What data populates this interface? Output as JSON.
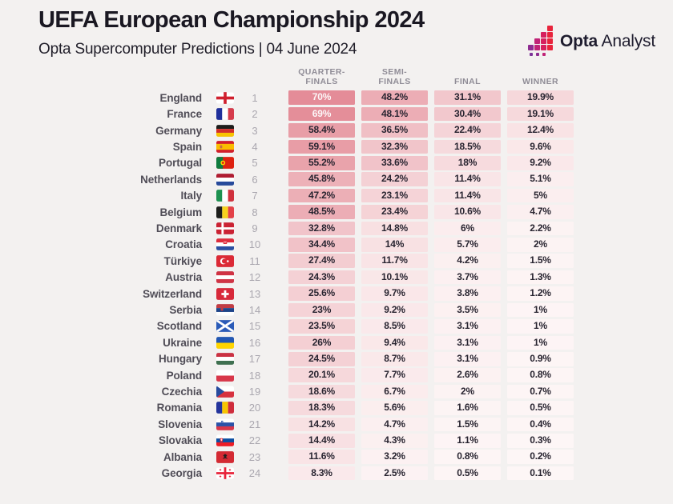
{
  "page": {
    "background": "#f3f1f0"
  },
  "header": {
    "title": "UEFA European Championship 2024",
    "subtitle": "Opta Supercomputer Predictions | 04 June 2024",
    "logo": {
      "bold": "Opta",
      "regular": "Analyst",
      "icon_colors": [
        "#e8243c",
        "#d6215e",
        "#c02377",
        "#8e2b91",
        "#7c3198"
      ]
    }
  },
  "chart_data": {
    "type": "table",
    "title": "UEFA European Championship 2024",
    "subtitle": "Opta Supercomputer Predictions | 04 June 2024",
    "columns": [
      {
        "key": "qf",
        "label_lines": [
          "QUARTER-",
          "FINALS"
        ]
      },
      {
        "key": "sf",
        "label_lines": [
          "SEMI-",
          "FINALS"
        ]
      },
      {
        "key": "final",
        "label_lines": [
          "FINAL"
        ]
      },
      {
        "key": "winner",
        "label_lines": [
          "WINNER"
        ]
      }
    ],
    "heat_scale": {
      "low": "#fdf6f6",
      "high": "#d95f6f",
      "max": 100,
      "white_text_min": 60,
      "white_text_color": "#fcf6f7",
      "dark_text_color": "#282430"
    },
    "rows": [
      {
        "rank": 1,
        "team": "England",
        "flag": "england",
        "qf": "70%",
        "sf": "48.2%",
        "final": "31.1%",
        "winner": "19.9%"
      },
      {
        "rank": 2,
        "team": "France",
        "flag": "france",
        "qf": "69%",
        "sf": "48.1%",
        "final": "30.4%",
        "winner": "19.1%"
      },
      {
        "rank": 3,
        "team": "Germany",
        "flag": "germany",
        "qf": "58.4%",
        "sf": "36.5%",
        "final": "22.4%",
        "winner": "12.4%"
      },
      {
        "rank": 4,
        "team": "Spain",
        "flag": "spain",
        "qf": "59.1%",
        "sf": "32.3%",
        "final": "18.5%",
        "winner": "9.6%"
      },
      {
        "rank": 5,
        "team": "Portugal",
        "flag": "portugal",
        "qf": "55.2%",
        "sf": "33.6%",
        "final": "18%",
        "winner": "9.2%"
      },
      {
        "rank": 6,
        "team": "Netherlands",
        "flag": "netherlands",
        "qf": "45.8%",
        "sf": "24.2%",
        "final": "11.4%",
        "winner": "5.1%"
      },
      {
        "rank": 7,
        "team": "Italy",
        "flag": "italy",
        "qf": "47.2%",
        "sf": "23.1%",
        "final": "11.4%",
        "winner": "5%"
      },
      {
        "rank": 8,
        "team": "Belgium",
        "flag": "belgium",
        "qf": "48.5%",
        "sf": "23.4%",
        "final": "10.6%",
        "winner": "4.7%"
      },
      {
        "rank": 9,
        "team": "Denmark",
        "flag": "denmark",
        "qf": "32.8%",
        "sf": "14.8%",
        "final": "6%",
        "winner": "2.2%"
      },
      {
        "rank": 10,
        "team": "Croatia",
        "flag": "croatia",
        "qf": "34.4%",
        "sf": "14%",
        "final": "5.7%",
        "winner": "2%"
      },
      {
        "rank": 11,
        "team": "Türkiye",
        "flag": "turkiye",
        "qf": "27.4%",
        "sf": "11.7%",
        "final": "4.2%",
        "winner": "1.5%"
      },
      {
        "rank": 12,
        "team": "Austria",
        "flag": "austria",
        "qf": "24.3%",
        "sf": "10.1%",
        "final": "3.7%",
        "winner": "1.3%"
      },
      {
        "rank": 13,
        "team": "Switzerland",
        "flag": "switzerland",
        "qf": "25.6%",
        "sf": "9.7%",
        "final": "3.8%",
        "winner": "1.2%"
      },
      {
        "rank": 14,
        "team": "Serbia",
        "flag": "serbia",
        "qf": "23%",
        "sf": "9.2%",
        "final": "3.5%",
        "winner": "1%"
      },
      {
        "rank": 15,
        "team": "Scotland",
        "flag": "scotland",
        "qf": "23.5%",
        "sf": "8.5%",
        "final": "3.1%",
        "winner": "1%"
      },
      {
        "rank": 16,
        "team": "Ukraine",
        "flag": "ukraine",
        "qf": "26%",
        "sf": "9.4%",
        "final": "3.1%",
        "winner": "1%"
      },
      {
        "rank": 17,
        "team": "Hungary",
        "flag": "hungary",
        "qf": "24.5%",
        "sf": "8.7%",
        "final": "3.1%",
        "winner": "0.9%"
      },
      {
        "rank": 18,
        "team": "Poland",
        "flag": "poland",
        "qf": "20.1%",
        "sf": "7.7%",
        "final": "2.6%",
        "winner": "0.8%"
      },
      {
        "rank": 19,
        "team": "Czechia",
        "flag": "czechia",
        "qf": "18.6%",
        "sf": "6.7%",
        "final": "2%",
        "winner": "0.7%"
      },
      {
        "rank": 20,
        "team": "Romania",
        "flag": "romania",
        "qf": "18.3%",
        "sf": "5.6%",
        "final": "1.6%",
        "winner": "0.5%"
      },
      {
        "rank": 21,
        "team": "Slovenia",
        "flag": "slovenia",
        "qf": "14.2%",
        "sf": "4.7%",
        "final": "1.5%",
        "winner": "0.4%"
      },
      {
        "rank": 22,
        "team": "Slovakia",
        "flag": "slovakia",
        "qf": "14.4%",
        "sf": "4.3%",
        "final": "1.1%",
        "winner": "0.3%"
      },
      {
        "rank": 23,
        "team": "Albania",
        "flag": "albania",
        "qf": "11.6%",
        "sf": "3.2%",
        "final": "0.8%",
        "winner": "0.2%"
      },
      {
        "rank": 24,
        "team": "Georgia",
        "flag": "georgia",
        "qf": "8.3%",
        "sf": "2.5%",
        "final": "0.5%",
        "winner": "0.1%"
      }
    ]
  }
}
